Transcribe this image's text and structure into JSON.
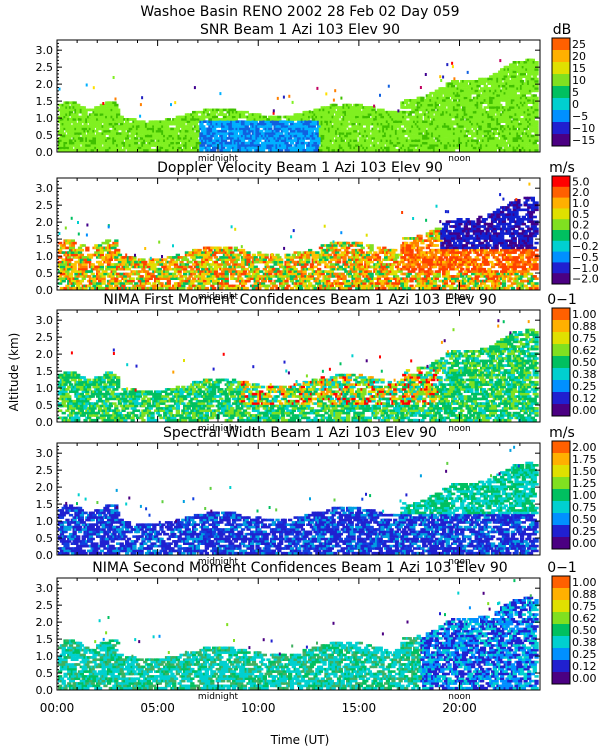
{
  "chart_data": {
    "type": "heatmap",
    "title": "Washoe Basin RENO 2002  28 Feb 02 Day 059",
    "xlabel": "Time (UT)",
    "ylabel": "Altitude (km)",
    "x_ticks": [
      "00:00",
      "05:00",
      "10:00",
      "15:00",
      "20:00"
    ],
    "x_markers": [
      "midnight",
      "noon"
    ],
    "xlim": [
      0,
      24
    ],
    "ylim": [
      0,
      3.3
    ],
    "y_ticks": [
      "0.0",
      "0.5",
      "1.0",
      "1.5",
      "2.0",
      "2.5",
      "3.0"
    ],
    "colors": [
      "#4b0082",
      "#2020d0",
      "#0090ff",
      "#00d0d0",
      "#00c060",
      "#80e020",
      "#e0e000",
      "#ffb000",
      "#ff6000",
      "#ff0000",
      "#ffa0a0"
    ],
    "panels": [
      {
        "title": "SNR Beam 1 Azi 103 Elev 90",
        "unit": "dB",
        "colorbar_labels": [
          "25",
          "20",
          "15",
          "10",
          "5",
          "0",
          "−5",
          "−10",
          "−15"
        ],
        "palette": [
          "#40c000",
          "#80f020",
          "#00b0ff",
          "#1060e0",
          "#2020c0",
          "#400090",
          "#c00060",
          "#ff0000",
          "#ff8000",
          "#ffc000",
          "#ffe000"
        ]
      },
      {
        "title": "Doppler Velocity Beam 1 Azi 103 Elev 90",
        "unit": "m/s",
        "colorbar_labels": [
          "5.0",
          "2.0",
          "1.0",
          "0.5",
          "0.2",
          "0.0",
          "−0.2",
          "−0.5",
          "−1.0",
          "−2.0"
        ],
        "palette": [
          "#ff8000",
          "#ffc000",
          "#ff4000",
          "#e0e000",
          "#80e020",
          "#00c060",
          "#00d0d0",
          "#0090ff",
          "#1020d0",
          "#40008a"
        ]
      },
      {
        "title": "NIMA First Moment Confidences Beam 1 Azi 103 Elev 90",
        "unit": "0−1",
        "colorbar_labels": [
          "1.00",
          "0.88",
          "0.75",
          "0.62",
          "0.50",
          "0.38",
          "0.25",
          "0.12",
          "0.00"
        ],
        "palette": [
          "#00c060",
          "#80e020",
          "#00d0d0",
          "#ffa000",
          "#e0e000",
          "#ff0000",
          "#2020d0",
          "#4b0082"
        ]
      },
      {
        "title": "Spectral Width Beam 1 Azi 103 Elev 90",
        "unit": "m/s",
        "colorbar_labels": [
          "2.00",
          "1.75",
          "1.50",
          "1.25",
          "1.00",
          "0.75",
          "0.50",
          "0.25",
          "0.00"
        ],
        "palette": [
          "#2020d0",
          "#1040e0",
          "#00a0e0",
          "#00d0d0",
          "#00c060",
          "#4b0082",
          "#60d040"
        ]
      },
      {
        "title": "NIMA Second Moment Confidences Beam 1 Azi 103 Elev 90",
        "unit": "0−1",
        "colorbar_labels": [
          "1.00",
          "0.88",
          "0.75",
          "0.62",
          "0.50",
          "0.38",
          "0.25",
          "0.12",
          "0.00"
        ],
        "palette": [
          "#00c060",
          "#00d0d0",
          "#2020d0",
          "#0090ff",
          "#40b060",
          "#4b0082",
          "#80e020"
        ]
      }
    ]
  }
}
